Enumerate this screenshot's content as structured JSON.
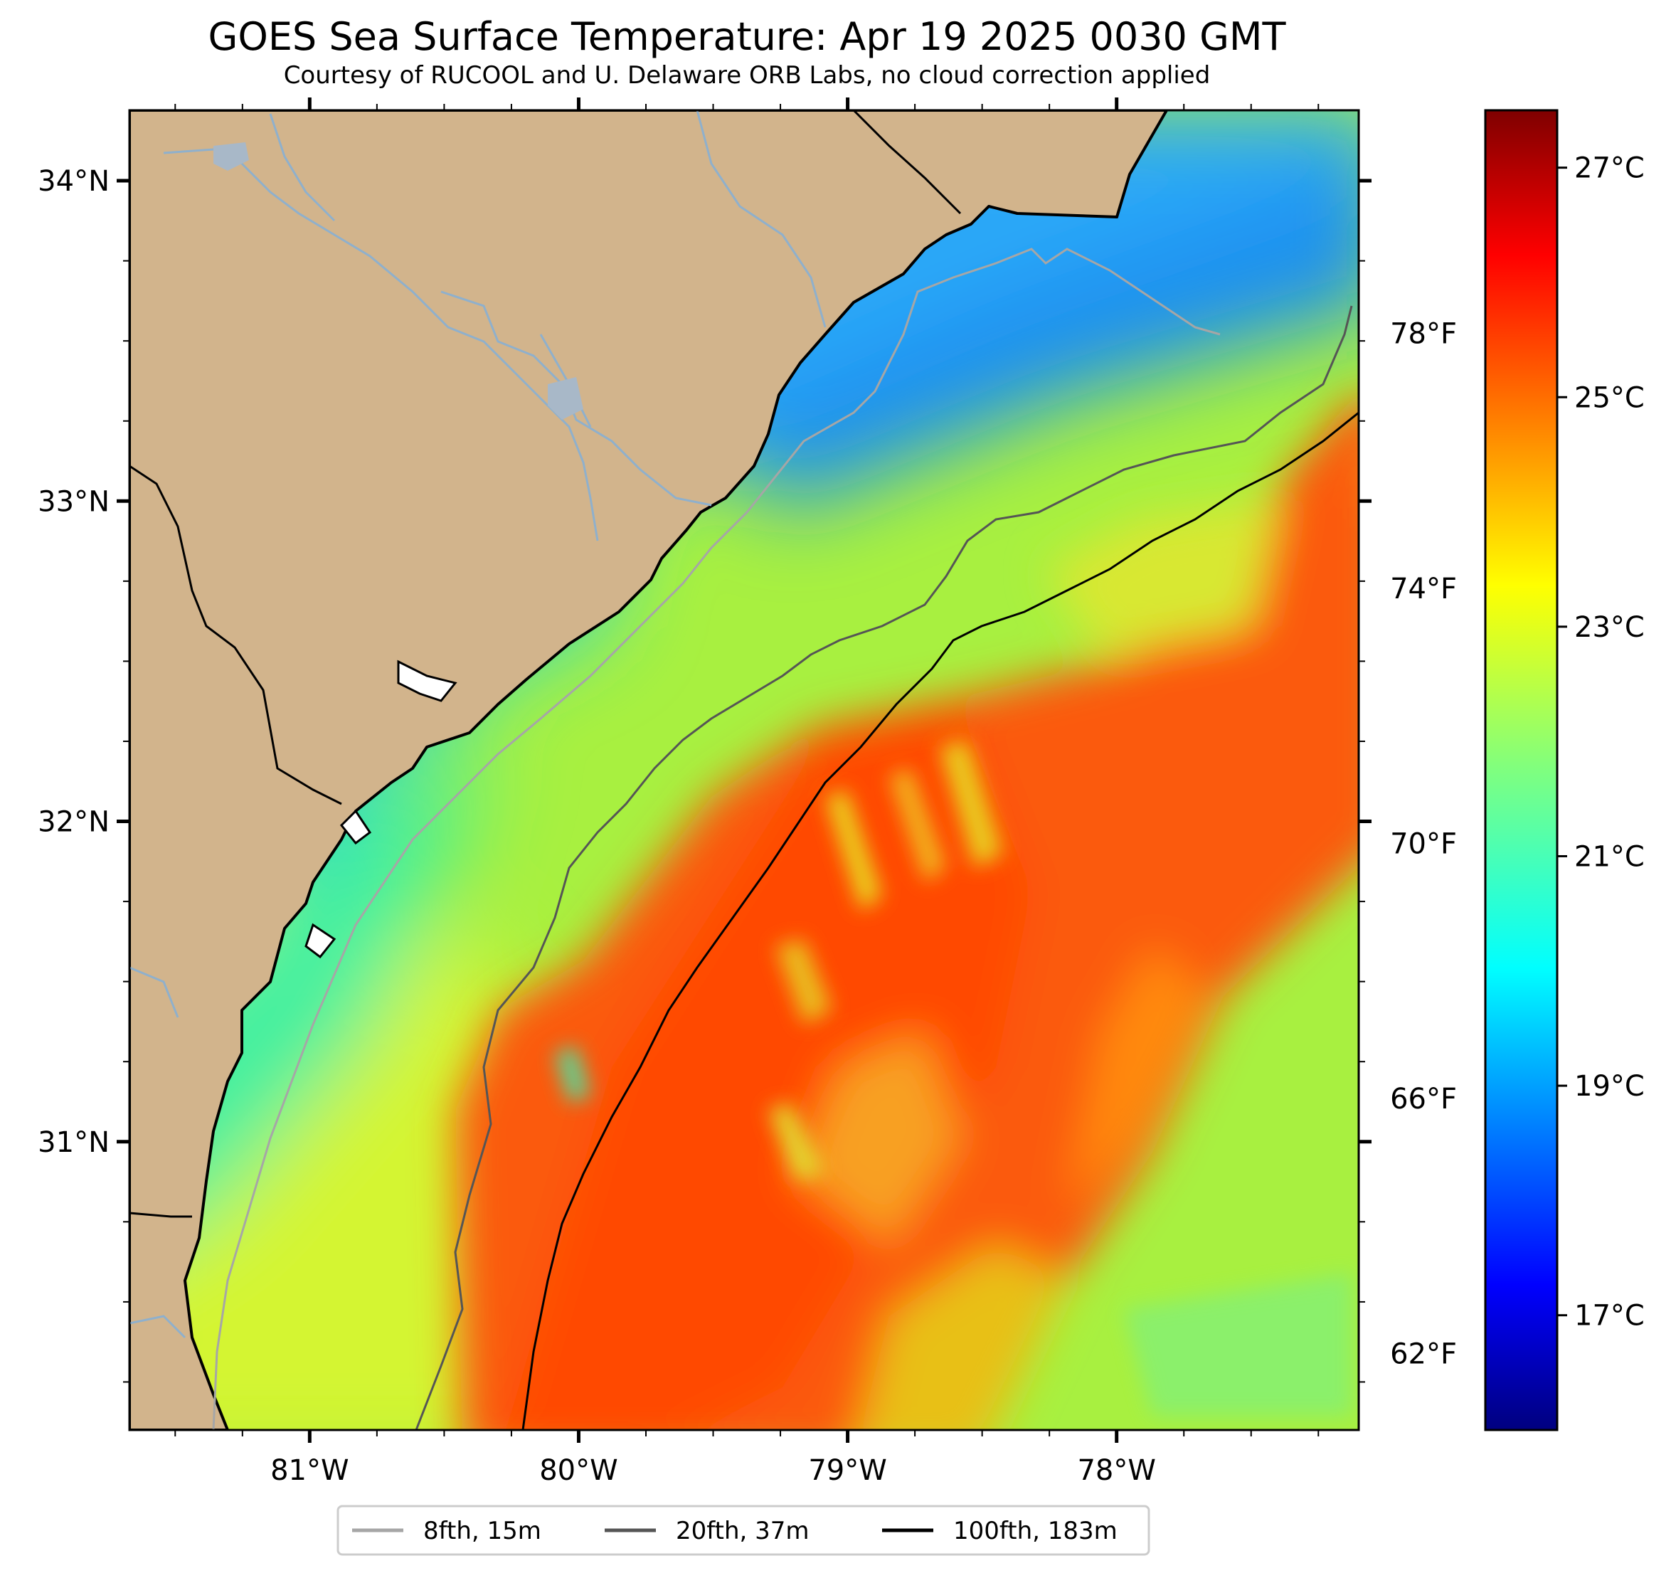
{
  "title": "GOES Sea Surface Temperature: Apr 19 2025 0030 GMT",
  "subtitle": "Courtesy of RUCOOL and U. Delaware ORB Labs, no cloud correction applied",
  "colors": {
    "land": "#d2b48c",
    "rivers": "#8fb0cc",
    "coastline": "#000000",
    "contour_8fth": "#a6a6a6",
    "contour_20fth": "#555555",
    "contour_100fth": "#000000",
    "colormap": "jet"
  },
  "map": {
    "lon_range": [
      -81.67,
      -77.1
    ],
    "lat_range": [
      30.1,
      34.22
    ],
    "lon_ticks": [
      {
        "value": -81,
        "label": "81°W"
      },
      {
        "value": -80,
        "label": "80°W"
      },
      {
        "value": -79,
        "label": "79°W"
      },
      {
        "value": -78,
        "label": "78°W"
      }
    ],
    "lat_ticks": [
      {
        "value": 34,
        "label": "34°N"
      },
      {
        "value": 33,
        "label": "33°N"
      },
      {
        "value": 32,
        "label": "32°N"
      },
      {
        "value": 31,
        "label": "31°N"
      }
    ]
  },
  "colorbar": {
    "range_c": [
      16.0,
      27.5
    ],
    "celsius_ticks": [
      {
        "value": 27,
        "label": "27°C"
      },
      {
        "value": 25,
        "label": "25°C"
      },
      {
        "value": 23,
        "label": "23°C"
      },
      {
        "value": 21,
        "label": "21°C"
      },
      {
        "value": 19,
        "label": "19°C"
      },
      {
        "value": 17,
        "label": "17°C"
      }
    ],
    "fahrenheit_ticks": [
      {
        "value": 78,
        "label": "78°F"
      },
      {
        "value": 74,
        "label": "74°F"
      },
      {
        "value": 70,
        "label": "70°F"
      },
      {
        "value": 66,
        "label": "66°F"
      },
      {
        "value": 62,
        "label": "62°F"
      }
    ]
  },
  "legend": {
    "placement": "bottom-center",
    "entries": [
      {
        "label": "8fth, 15m",
        "color": "#a6a6a6"
      },
      {
        "label": "20fth, 37m",
        "color": "#555555"
      },
      {
        "label": "100fth, 183m",
        "color": "#000000"
      }
    ]
  }
}
